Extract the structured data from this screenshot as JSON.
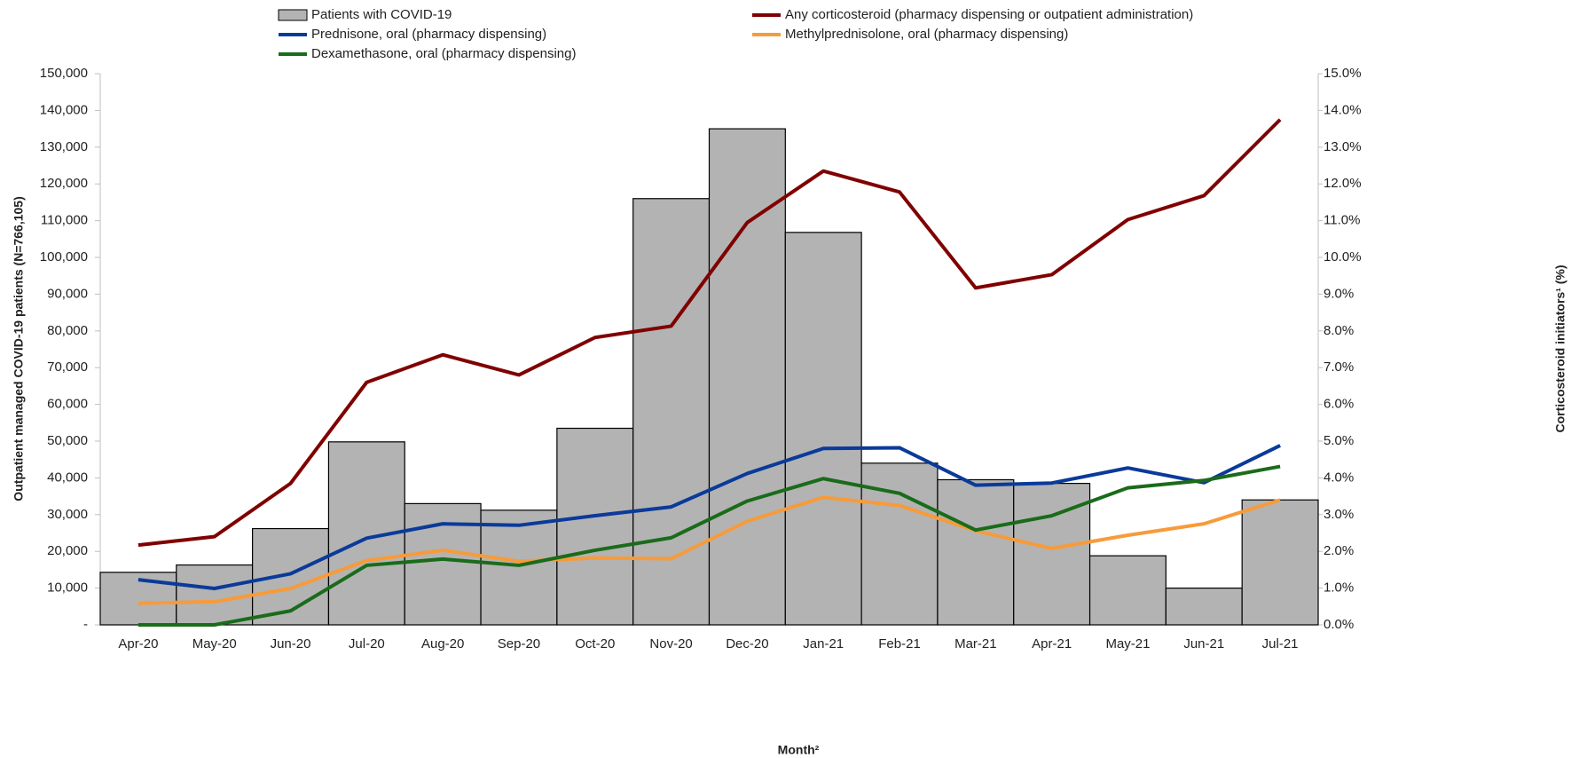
{
  "chart_data": {
    "type": "bar",
    "x_label": "Month²",
    "y_label": "Outpatient managed COVID-19 patients (N=766,105)",
    "y2_label": "Corticosteroid initiators¹ (%)",
    "categories": [
      "Apr-20",
      "May-20",
      "Jun-20",
      "Jul-20",
      "Aug-20",
      "Sep-20",
      "Oct-20",
      "Nov-20",
      "Dec-20",
      "Jan-21",
      "Feb-21",
      "Mar-21",
      "Apr-21",
      "May-21",
      "Jun-21",
      "Jul-21"
    ],
    "series": [
      {
        "name": "Patients with COVID-19",
        "type": "bar",
        "color": "#b3b3b3",
        "values": [
          14300,
          16300,
          26200,
          49800,
          33000,
          31200,
          53500,
          116000,
          135000,
          106800,
          44000,
          39500,
          38500,
          18800,
          10000,
          34000
        ]
      },
      {
        "name": "Any corticosteroid (pharmacy dispensing or outpatient administration)",
        "type": "line",
        "axis": "y2",
        "color": "#800000",
        "values": [
          2.17,
          2.4,
          3.85,
          6.6,
          7.35,
          6.8,
          7.82,
          8.13,
          10.95,
          12.35,
          11.78,
          9.17,
          9.53,
          11.03,
          11.68,
          13.75
        ]
      },
      {
        "name": "Prednisone, oral (pharmacy dispensing)",
        "type": "line",
        "axis": "y2",
        "color": "#0a3a9a",
        "values": [
          1.23,
          0.99,
          1.39,
          2.36,
          2.75,
          2.71,
          2.97,
          3.21,
          4.12,
          4.8,
          4.82,
          3.8,
          3.86,
          4.27,
          3.87,
          4.88
        ]
      },
      {
        "name": "Methylprednisolone, oral (pharmacy dispensing)",
        "type": "line",
        "axis": "y2",
        "color": "#f79b3a",
        "values": [
          0.59,
          0.63,
          0.99,
          1.75,
          2.03,
          1.73,
          1.82,
          1.8,
          2.82,
          3.47,
          3.25,
          2.56,
          2.08,
          2.44,
          2.75,
          3.4
        ]
      },
      {
        "name": "Dexamethasone, oral (pharmacy dispensing)",
        "type": "line",
        "axis": "y2",
        "color": "#1a6b1a",
        "values": [
          0,
          0,
          0.38,
          1.62,
          1.79,
          1.62,
          2.03,
          2.37,
          3.37,
          3.98,
          3.58,
          2.58,
          2.97,
          3.73,
          3.93,
          4.31
        ]
      }
    ],
    "ylim": [
      0,
      150000
    ],
    "yticks": [
      {
        "value": 0,
        "label": "-"
      },
      {
        "value": 10000,
        "label": "10,000"
      },
      {
        "value": 20000,
        "label": "20,000"
      },
      {
        "value": 30000,
        "label": "30,000"
      },
      {
        "value": 40000,
        "label": "40,000"
      },
      {
        "value": 50000,
        "label": "50,000"
      },
      {
        "value": 60000,
        "label": "60,000"
      },
      {
        "value": 70000,
        "label": "70,000"
      },
      {
        "value": 80000,
        "label": "80,000"
      },
      {
        "value": 90000,
        "label": "90,000"
      },
      {
        "value": 100000,
        "label": "100,000"
      },
      {
        "value": 110000,
        "label": "110,000"
      },
      {
        "value": 120000,
        "label": "120,000"
      },
      {
        "value": 130000,
        "label": "130,000"
      },
      {
        "value": 140000,
        "label": "140,000"
      },
      {
        "value": 150000,
        "label": "150,000"
      }
    ],
    "y2lim": [
      0,
      15
    ],
    "y2ticks": [
      {
        "value": 0,
        "label": "0.0%"
      },
      {
        "value": 1,
        "label": "1.0%"
      },
      {
        "value": 2,
        "label": "2.0%"
      },
      {
        "value": 3,
        "label": "3.0%"
      },
      {
        "value": 4,
        "label": "4.0%"
      },
      {
        "value": 5,
        "label": "5.0%"
      },
      {
        "value": 6,
        "label": "6.0%"
      },
      {
        "value": 7,
        "label": "7.0%"
      },
      {
        "value": 8,
        "label": "8.0%"
      },
      {
        "value": 9,
        "label": "9.0%"
      },
      {
        "value": 10,
        "label": "10.0%"
      },
      {
        "value": 11,
        "label": "11.0%"
      },
      {
        "value": 12,
        "label": "12.0%"
      },
      {
        "value": 13,
        "label": "13.0%"
      },
      {
        "value": 14,
        "label": "14.0%"
      },
      {
        "value": 15,
        "label": "15.0%"
      }
    ]
  }
}
